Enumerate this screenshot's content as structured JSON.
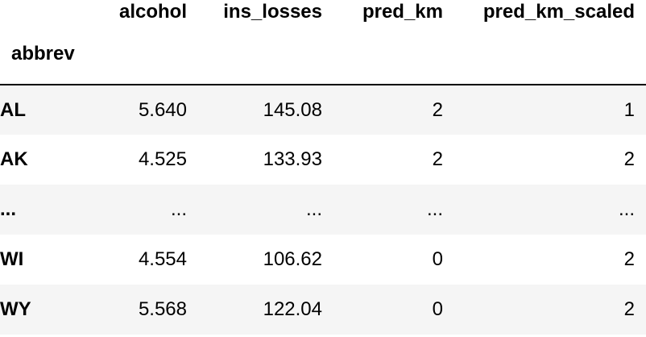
{
  "table": {
    "index_name": "abbrev",
    "columns": [
      "alcohol",
      "ins_losses",
      "pred_km",
      "pred_km_scaled"
    ],
    "rows": [
      {
        "index": "AL",
        "cells": [
          "5.640",
          "145.08",
          "2",
          "1"
        ]
      },
      {
        "index": "AK",
        "cells": [
          "4.525",
          "133.93",
          "2",
          "2"
        ]
      },
      {
        "index": "...",
        "cells": [
          "...",
          "...",
          "...",
          "..."
        ]
      },
      {
        "index": "WI",
        "cells": [
          "4.554",
          "106.62",
          "0",
          "2"
        ]
      },
      {
        "index": "WY",
        "cells": [
          "5.568",
          "122.04",
          "0",
          "2"
        ]
      }
    ]
  },
  "colors": {
    "text": "#000000",
    "stripe": "#f5f5f5",
    "background": "#ffffff"
  }
}
